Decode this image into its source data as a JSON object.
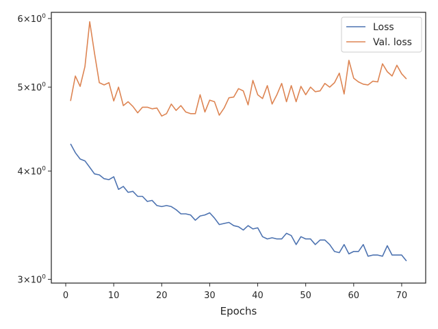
{
  "chart_data": {
    "type": "line",
    "title": "",
    "xlabel": "Epochs",
    "ylabel": "",
    "yscale": "log",
    "xlim": [
      -3,
      75
    ],
    "ylim": [
      2.97,
      6.1
    ],
    "xticks": [
      0,
      10,
      20,
      30,
      40,
      50,
      60,
      70
    ],
    "yticks": [
      {
        "value": 3,
        "mantissa": "3",
        "base": "10",
        "exp": "0"
      },
      {
        "value": 4,
        "mantissa": "4",
        "base": "10",
        "exp": "0"
      },
      {
        "value": 5,
        "mantissa": "5",
        "base": "10",
        "exp": "0"
      },
      {
        "value": 6,
        "mantissa": "6",
        "base": "10",
        "exp": "0"
      }
    ],
    "tick_sep": "×",
    "grid": false,
    "legend": "top-right",
    "x": [
      1,
      2,
      3,
      4,
      5,
      6,
      7,
      8,
      9,
      10,
      11,
      12,
      13,
      14,
      15,
      16,
      17,
      18,
      19,
      20,
      21,
      22,
      23,
      24,
      25,
      26,
      27,
      28,
      29,
      30,
      31,
      32,
      33,
      34,
      35,
      36,
      37,
      38,
      39,
      40,
      41,
      42,
      43,
      44,
      45,
      46,
      47,
      48,
      49,
      50,
      51,
      52,
      53,
      54,
      55,
      56,
      57,
      58,
      59,
      60,
      61,
      62,
      63,
      64,
      65,
      66,
      67,
      68,
      69,
      70,
      71
    ],
    "series": [
      {
        "name": "Loss",
        "color": "#4c72b0",
        "values": [
          4.3,
          4.2,
          4.13,
          4.11,
          4.04,
          3.97,
          3.96,
          3.92,
          3.91,
          3.94,
          3.81,
          3.84,
          3.78,
          3.79,
          3.74,
          3.74,
          3.69,
          3.7,
          3.65,
          3.64,
          3.65,
          3.64,
          3.61,
          3.57,
          3.57,
          3.56,
          3.51,
          3.55,
          3.56,
          3.58,
          3.53,
          3.47,
          3.48,
          3.49,
          3.46,
          3.45,
          3.42,
          3.46,
          3.43,
          3.44,
          3.36,
          3.34,
          3.35,
          3.34,
          3.34,
          3.39,
          3.37,
          3.29,
          3.36,
          3.34,
          3.34,
          3.29,
          3.33,
          3.33,
          3.29,
          3.23,
          3.22,
          3.29,
          3.21,
          3.23,
          3.23,
          3.29,
          3.19,
          3.2,
          3.2,
          3.19,
          3.28,
          3.2,
          3.2,
          3.2,
          3.15
        ]
      },
      {
        "name": "Val. loss",
        "color": "#dd8452",
        "values": [
          4.82,
          5.15,
          5.01,
          5.28,
          5.95,
          5.47,
          5.06,
          5.03,
          5.06,
          4.82,
          5.0,
          4.76,
          4.81,
          4.75,
          4.67,
          4.74,
          4.74,
          4.72,
          4.73,
          4.63,
          4.66,
          4.78,
          4.7,
          4.76,
          4.68,
          4.66,
          4.66,
          4.9,
          4.68,
          4.83,
          4.81,
          4.64,
          4.73,
          4.86,
          4.87,
          4.98,
          4.95,
          4.77,
          5.09,
          4.9,
          4.85,
          5.02,
          4.78,
          4.9,
          5.05,
          4.81,
          5.02,
          4.81,
          5.01,
          4.9,
          5.0,
          4.94,
          4.95,
          5.05,
          5.0,
          5.06,
          5.19,
          4.91,
          5.37,
          5.12,
          5.07,
          5.04,
          5.03,
          5.08,
          5.07,
          5.32,
          5.21,
          5.15,
          5.3,
          5.18,
          5.11
        ]
      }
    ]
  }
}
